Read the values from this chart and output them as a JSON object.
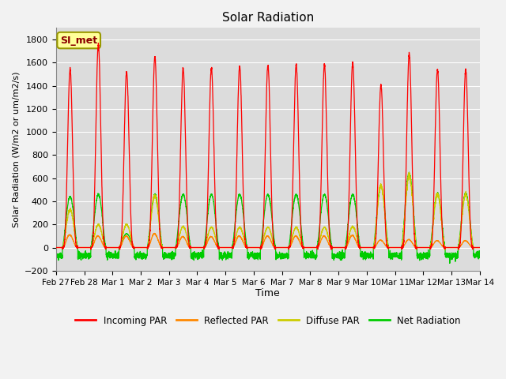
{
  "title": "Solar Radiation",
  "xlabel": "Time",
  "ylabel": "Solar Radiation (W/m2 or um/m2/s)",
  "ylim": [
    -200,
    1900
  ],
  "yticks": [
    -200,
    0,
    200,
    400,
    600,
    800,
    1000,
    1200,
    1400,
    1600,
    1800
  ],
  "x_tick_labels": [
    "Feb 27",
    "Feb 28",
    "Mar 1",
    "Mar 2",
    "Mar 3",
    "Mar 4",
    "Mar 5",
    "Mar 6",
    "Mar 7",
    "Mar 8",
    "Mar 9",
    "Mar 10",
    "Mar 11",
    "Mar 12",
    "Mar 13",
    "Mar 14"
  ],
  "n_days": 15,
  "colors": {
    "incoming": "#ff0000",
    "reflected": "#ff8800",
    "diffuse": "#cccc00",
    "net": "#00cc00",
    "background": "#dcdcdc",
    "grid": "#ffffff"
  },
  "legend_label": "SI_met",
  "legend_color_bg": "#ffff99",
  "legend_color_border": "#999900",
  "series_labels": [
    "Incoming PAR",
    "Reflected PAR",
    "Diffuse PAR",
    "Net Radiation"
  ],
  "incoming_peaks": [
    1540,
    1760,
    1520,
    1650,
    1550,
    1550,
    1570,
    1580,
    1580,
    1580,
    1600,
    1410,
    1680,
    1540,
    1540
  ],
  "reflected_peaks": [
    110,
    100,
    100,
    120,
    95,
    95,
    100,
    100,
    100,
    100,
    105,
    65,
    70,
    60,
    60
  ],
  "diffuse_peaks": [
    330,
    200,
    200,
    450,
    180,
    175,
    175,
    175,
    175,
    175,
    180,
    540,
    630,
    460,
    460
  ],
  "net_peaks": [
    440,
    460,
    120,
    460,
    460,
    460,
    460,
    460,
    460,
    460,
    460,
    530,
    640,
    470,
    470
  ],
  "night_net": -70,
  "pts_per_day": 288,
  "rise_hour": 5.5,
  "set_hour": 18.5,
  "peak_hour": 12.0,
  "incoming_power": 4.0,
  "net_power": 1.5,
  "reflected_power": 1.8,
  "diffuse_power": 1.6
}
